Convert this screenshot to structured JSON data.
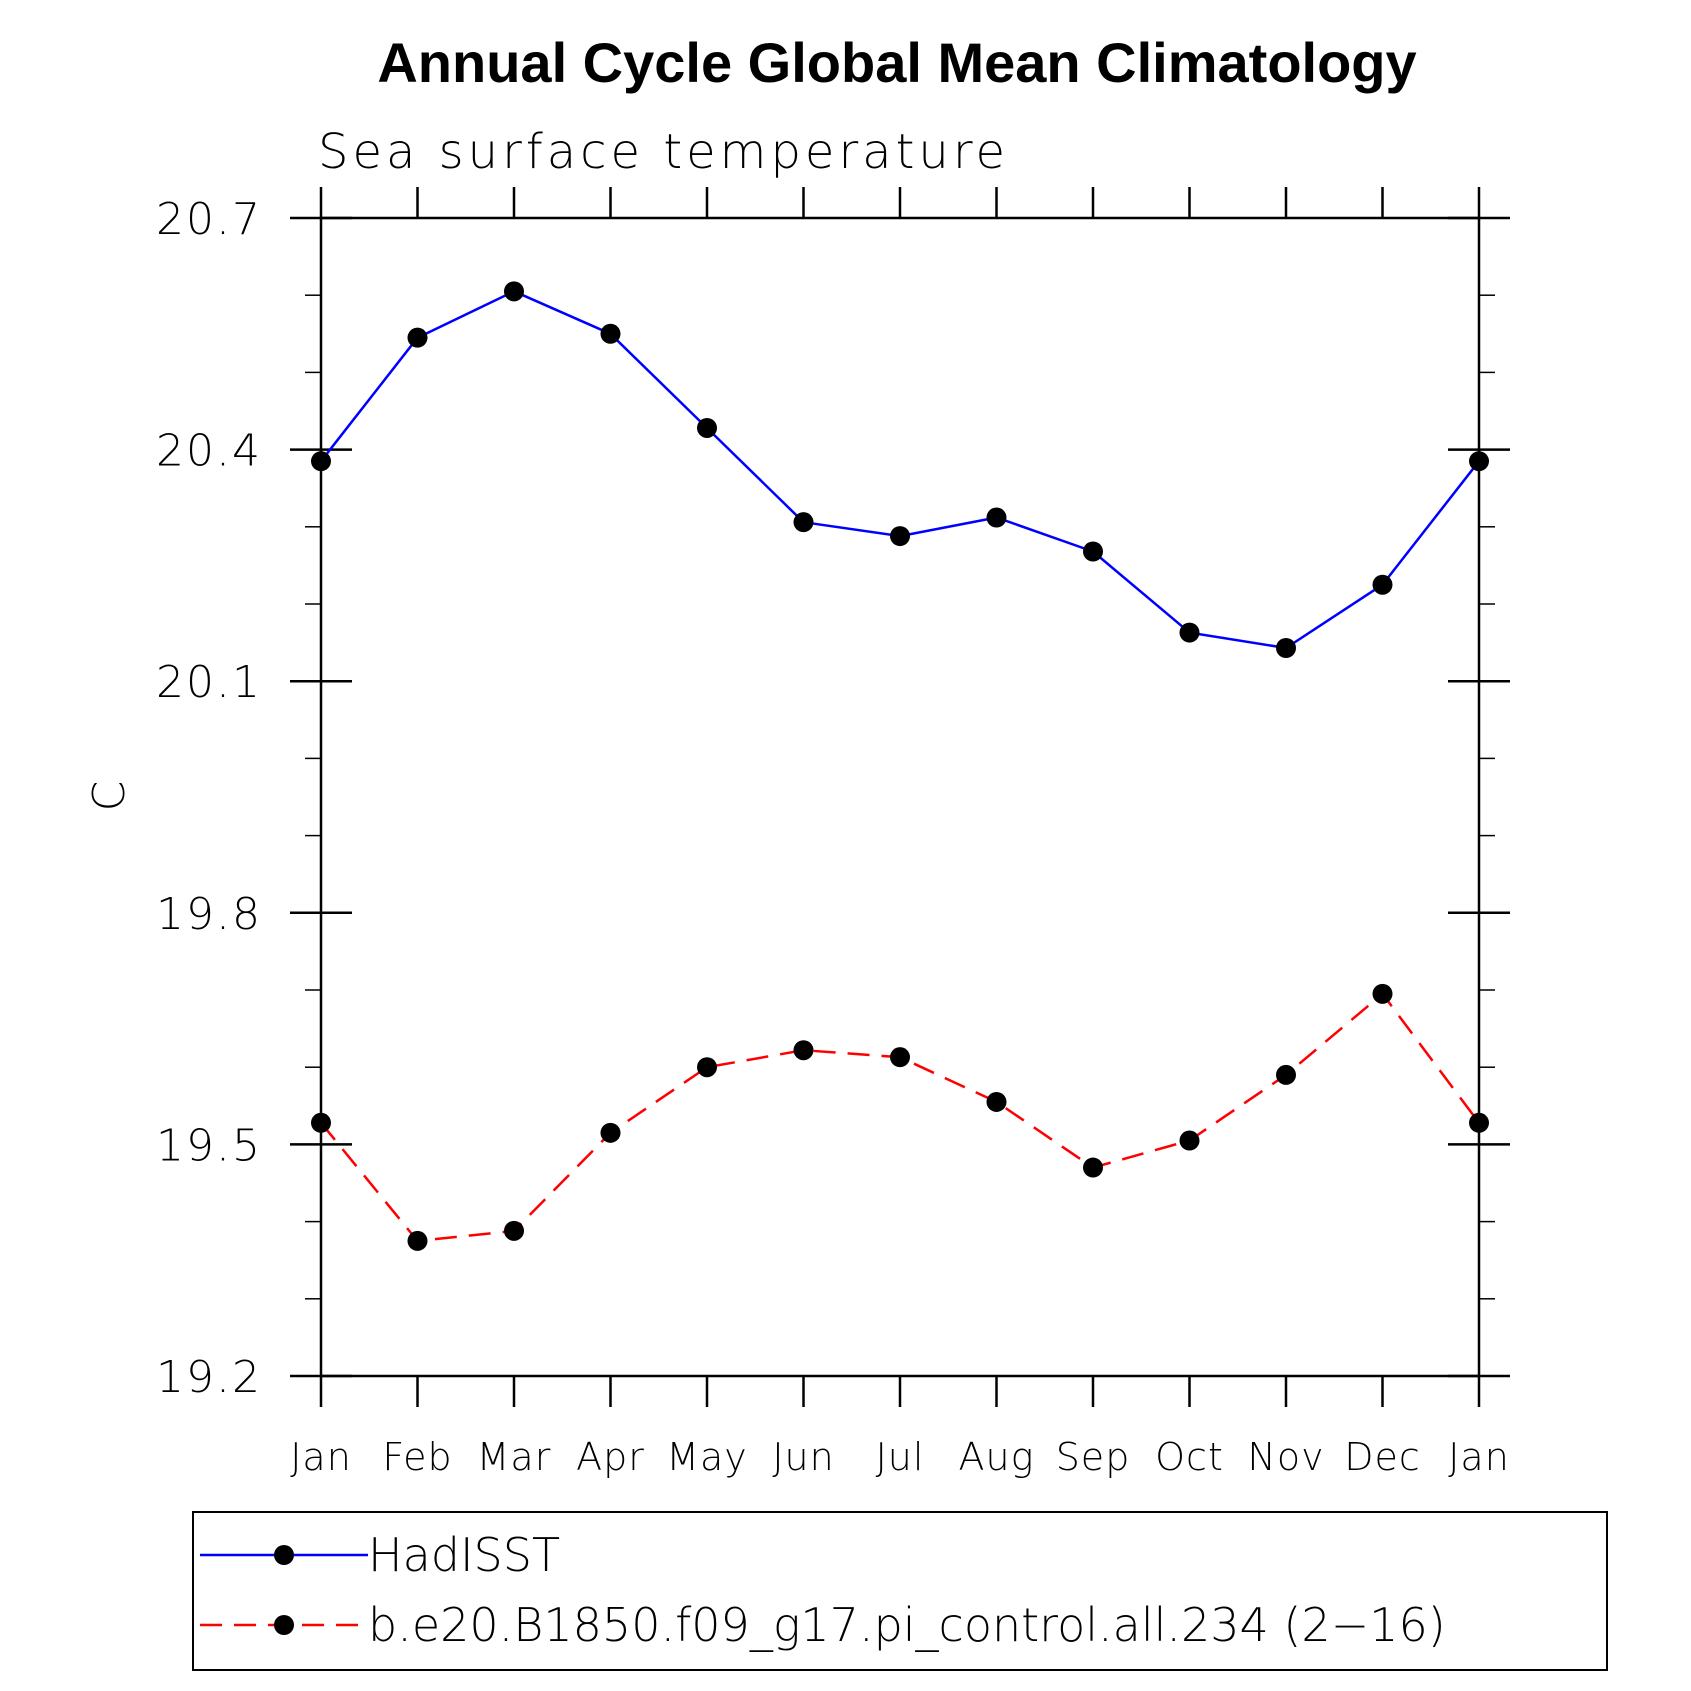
{
  "chart_data": {
    "type": "line",
    "title": "Annual Cycle Global Mean Climatology",
    "subtitle": "Sea surface temperature",
    "ylabel": "C",
    "xlabel": "",
    "ylim": [
      19.2,
      20.7
    ],
    "yticks": [
      19.2,
      19.5,
      19.8,
      20.1,
      20.4,
      20.7
    ],
    "ytick_labels": [
      "19.2",
      "19.5",
      "19.8",
      "20.1",
      "20.4",
      "20.7"
    ],
    "yminor_step": 0.1,
    "categories": [
      "Jan",
      "Feb",
      "Mar",
      "Apr",
      "May",
      "Jun",
      "Jul",
      "Aug",
      "Sep",
      "Oct",
      "Nov",
      "Dec",
      "Jan"
    ],
    "legend_position": "bottom",
    "series": [
      {
        "name": "HadISST",
        "color": "#0000ff",
        "dash": "solid",
        "values": [
          20.385,
          20.545,
          20.605,
          20.55,
          20.428,
          20.306,
          20.288,
          20.312,
          20.268,
          20.163,
          20.143,
          20.225,
          20.385
        ]
      },
      {
        "name": "b.e20.B1850.f09_g17.pi_control.all.234 (2−16)",
        "color": "#ff0000",
        "dash": "dashed",
        "values": [
          19.528,
          19.375,
          19.388,
          19.515,
          19.6,
          19.622,
          19.613,
          19.555,
          19.47,
          19.505,
          19.59,
          19.695,
          19.528
        ]
      }
    ]
  }
}
